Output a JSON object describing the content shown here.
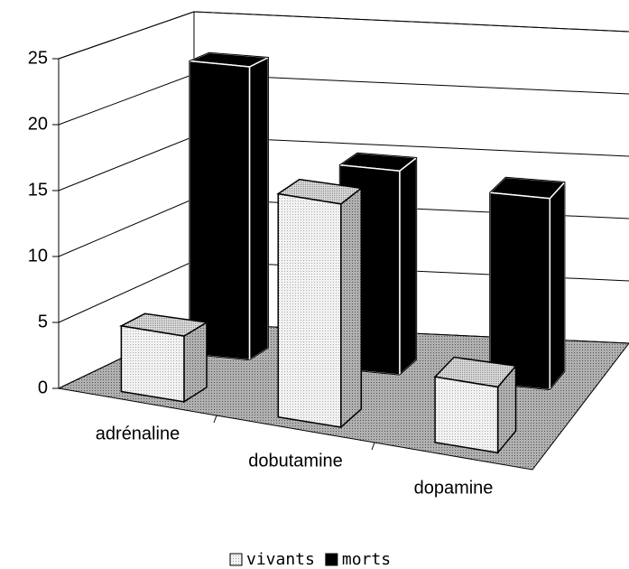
{
  "chart_data": {
    "type": "bar",
    "categories": [
      "adrénaline",
      "dobutamine",
      "dopamine"
    ],
    "series": [
      {
        "name": "vivants",
        "color": "#e6e6e6",
        "values": [
          5,
          17,
          5
        ]
      },
      {
        "name": "morts",
        "color": "#000000",
        "values": [
          23,
          16,
          15
        ]
      }
    ],
    "ylim": [
      0,
      25
    ],
    "yticks": [
      0,
      5,
      10,
      15,
      20,
      25
    ],
    "grid": true,
    "legend": "bottom"
  }
}
